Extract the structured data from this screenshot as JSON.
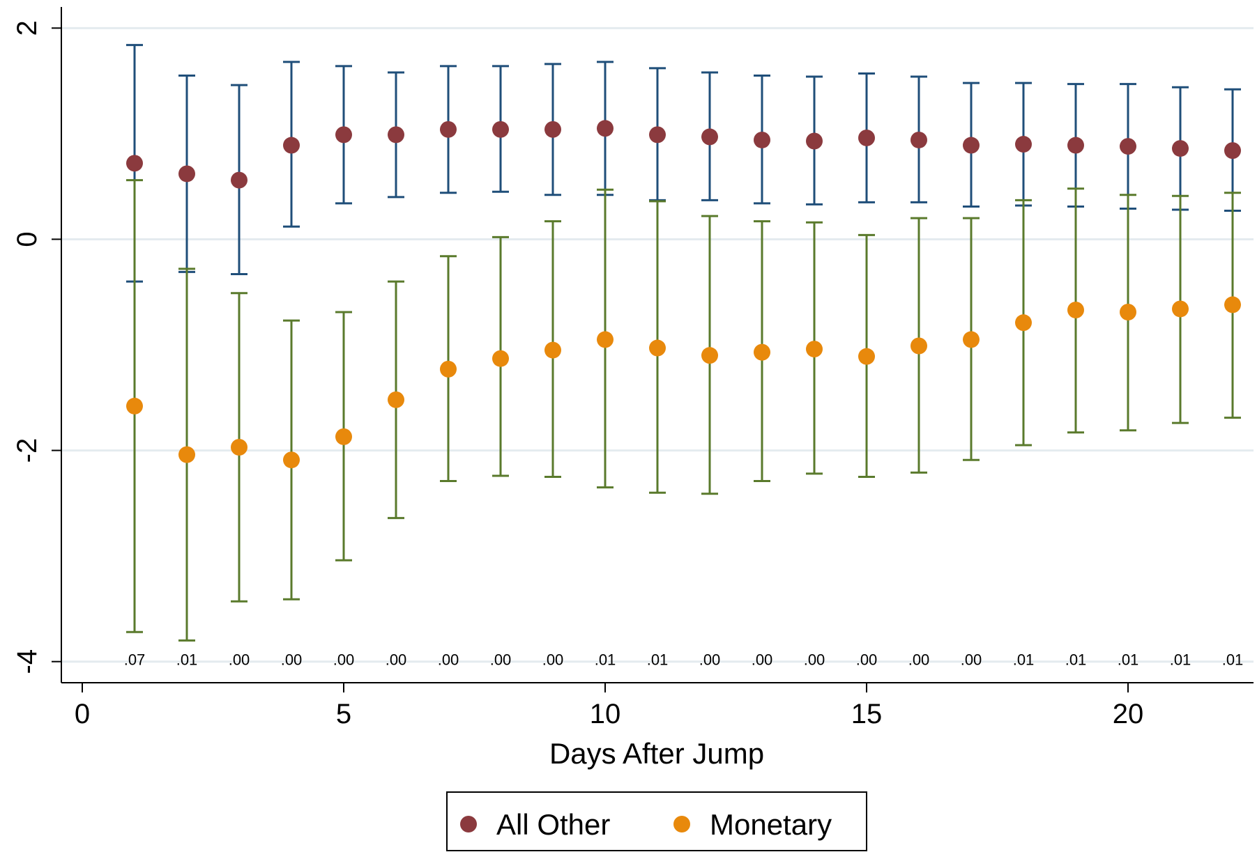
{
  "chart_data": {
    "type": "scatter",
    "xlabel": "Days After Jump",
    "ylabel": "",
    "title": "",
    "xlim": [
      -0.4,
      22.4
    ],
    "ylim": [
      -4.2,
      2.2
    ],
    "x_ticks": [
      0,
      5,
      10,
      15,
      20
    ],
    "y_ticks": [
      2,
      0,
      -2,
      -4
    ],
    "grid": true,
    "legend_position": "bottom",
    "x": [
      1,
      2,
      3,
      4,
      5,
      6,
      7,
      8,
      9,
      10,
      11,
      12,
      13,
      14,
      15,
      16,
      17,
      18,
      19,
      20,
      21,
      22
    ],
    "series": [
      {
        "name": "All Other",
        "color": "#8b3a3e",
        "ci_color": "#1f4e79",
        "values": [
          0.72,
          0.62,
          0.56,
          0.89,
          0.99,
          0.99,
          1.04,
          1.04,
          1.04,
          1.05,
          0.99,
          0.97,
          0.94,
          0.93,
          0.96,
          0.94,
          0.89,
          0.9,
          0.89,
          0.88,
          0.86,
          0.84
        ],
        "lower": [
          -0.4,
          -0.31,
          -0.33,
          0.12,
          0.34,
          0.4,
          0.44,
          0.45,
          0.42,
          0.42,
          0.37,
          0.37,
          0.34,
          0.33,
          0.35,
          0.35,
          0.31,
          0.32,
          0.31,
          0.29,
          0.28,
          0.27
        ],
        "upper": [
          1.84,
          1.55,
          1.46,
          1.68,
          1.64,
          1.58,
          1.64,
          1.64,
          1.66,
          1.68,
          1.62,
          1.58,
          1.55,
          1.54,
          1.57,
          1.54,
          1.48,
          1.48,
          1.47,
          1.47,
          1.44,
          1.42
        ]
      },
      {
        "name": "Monetary",
        "color": "#e8890c",
        "ci_color": "#5a7a2c",
        "values": [
          -1.58,
          -2.04,
          -1.97,
          -2.09,
          -1.87,
          -1.52,
          -1.23,
          -1.13,
          -1.05,
          -0.95,
          -1.03,
          -1.1,
          -1.07,
          -1.04,
          -1.11,
          -1.01,
          -0.95,
          -0.79,
          -0.67,
          -0.69,
          -0.66,
          -0.62
        ],
        "lower": [
          -3.72,
          -3.8,
          -3.43,
          -3.41,
          -3.04,
          -2.64,
          -2.29,
          -2.24,
          -2.25,
          -2.35,
          -2.4,
          -2.41,
          -2.29,
          -2.22,
          -2.25,
          -2.21,
          -2.09,
          -1.95,
          -1.83,
          -1.81,
          -1.74,
          -1.69
        ],
        "upper": [
          0.56,
          -0.28,
          -0.51,
          -0.77,
          -0.69,
          -0.4,
          -0.16,
          0.02,
          0.17,
          0.47,
          0.36,
          0.22,
          0.17,
          0.16,
          0.04,
          0.2,
          0.2,
          0.37,
          0.48,
          0.42,
          0.41,
          0.44
        ]
      }
    ],
    "pvalues": [
      ".07",
      ".01",
      ".00",
      ".00",
      ".00",
      ".00",
      ".00",
      ".00",
      ".00",
      ".01",
      ".01",
      ".00",
      ".00",
      ".00",
      ".00",
      ".00",
      ".00",
      ".01",
      ".01",
      ".01",
      ".01",
      ".01"
    ]
  }
}
